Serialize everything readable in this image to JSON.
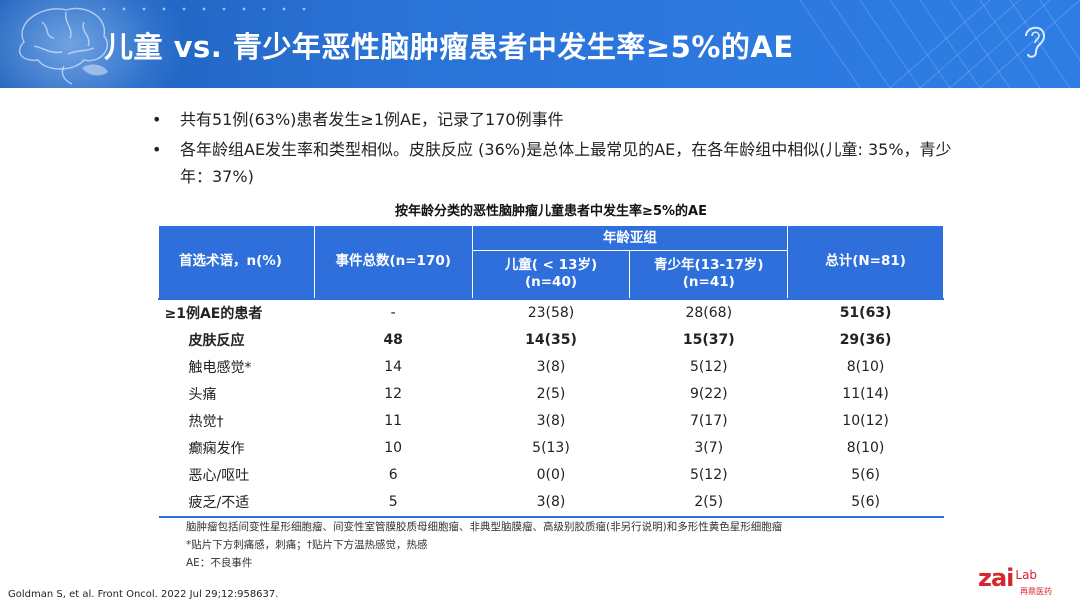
{
  "header": {
    "title": "儿童 vs. 青少年恶性脑肿瘤患者中发生率≥5%的AE"
  },
  "bullets": [
    {
      "marker": "•",
      "text": "共有51例(63%)患者发生≥1例AE，记录了170例事件"
    },
    {
      "marker": "•",
      "text": "各年龄组AE发生率和类型相似。皮肤反应 (36%)是总体上最常见的AE，在各年龄组中相似(儿童: 35%，青少年：37%)"
    }
  ],
  "table": {
    "title": "按年龄分类的恶性脑肿瘤儿童患者中发生率≥5%的AE",
    "headers": {
      "term": "首选术语，n(%)",
      "events": "事件总数(n=170)",
      "age_group": "年龄亚组",
      "children": "儿童( < 13岁)",
      "children_n": "(n=40)",
      "adolescents": "青少年(13-17岁)",
      "adolescents_n": "(n=41)",
      "total": "总计(N=81)"
    },
    "rows": [
      {
        "term": "≥1例AE的患者",
        "events": "-",
        "children": "23(58)",
        "adolescents": "28(68)",
        "total": "51(63)"
      },
      {
        "term": "皮肤反应",
        "events": "48",
        "children": "14(35)",
        "adolescents": "15(37)",
        "total": "29(36)"
      },
      {
        "term": "触电感觉*",
        "events": "14",
        "children": "3(8)",
        "adolescents": "5(12)",
        "total": "8(10)"
      },
      {
        "term": "头痛",
        "events": "12",
        "children": "2(5)",
        "adolescents": "9(22)",
        "total": "11(14)"
      },
      {
        "term": "热觉†",
        "events": "11",
        "children": "3(8)",
        "adolescents": "7(17)",
        "total": "10(12)"
      },
      {
        "term": "癫痫发作",
        "events": "10",
        "children": "5(13)",
        "adolescents": "3(7)",
        "total": "8(10)"
      },
      {
        "term": "恶心/呕吐",
        "events": "6",
        "children": "0(0)",
        "adolescents": "5(12)",
        "total": "5(6)"
      },
      {
        "term": "疲乏/不适",
        "events": "5",
        "children": "3(8)",
        "adolescents": "2(5)",
        "total": "5(6)"
      }
    ]
  },
  "footnotes": [
    "脑肿瘤包括间变性星形细胞瘤、间变性室管膜胶质母细胞瘤、非典型脑膜瘤、高级别胶质瘤(非另行说明)和多形性黄色星形细胞瘤",
    "*贴片下方刺痛感，刺痛；†贴片下方温热感觉，热感",
    "AE：不良事件"
  ],
  "citation": "Goldman S, et al. Front Oncol. 2022 Jul 29;12:958637.",
  "logo": {
    "text": "zai",
    "suffix": "Lab",
    "subtitle": "再鼎医药"
  },
  "colors": {
    "banner": "#2a72d6",
    "table_header": "#2f6fdc",
    "highlight_red": "#c8202b",
    "logo_red": "#d6262e"
  }
}
